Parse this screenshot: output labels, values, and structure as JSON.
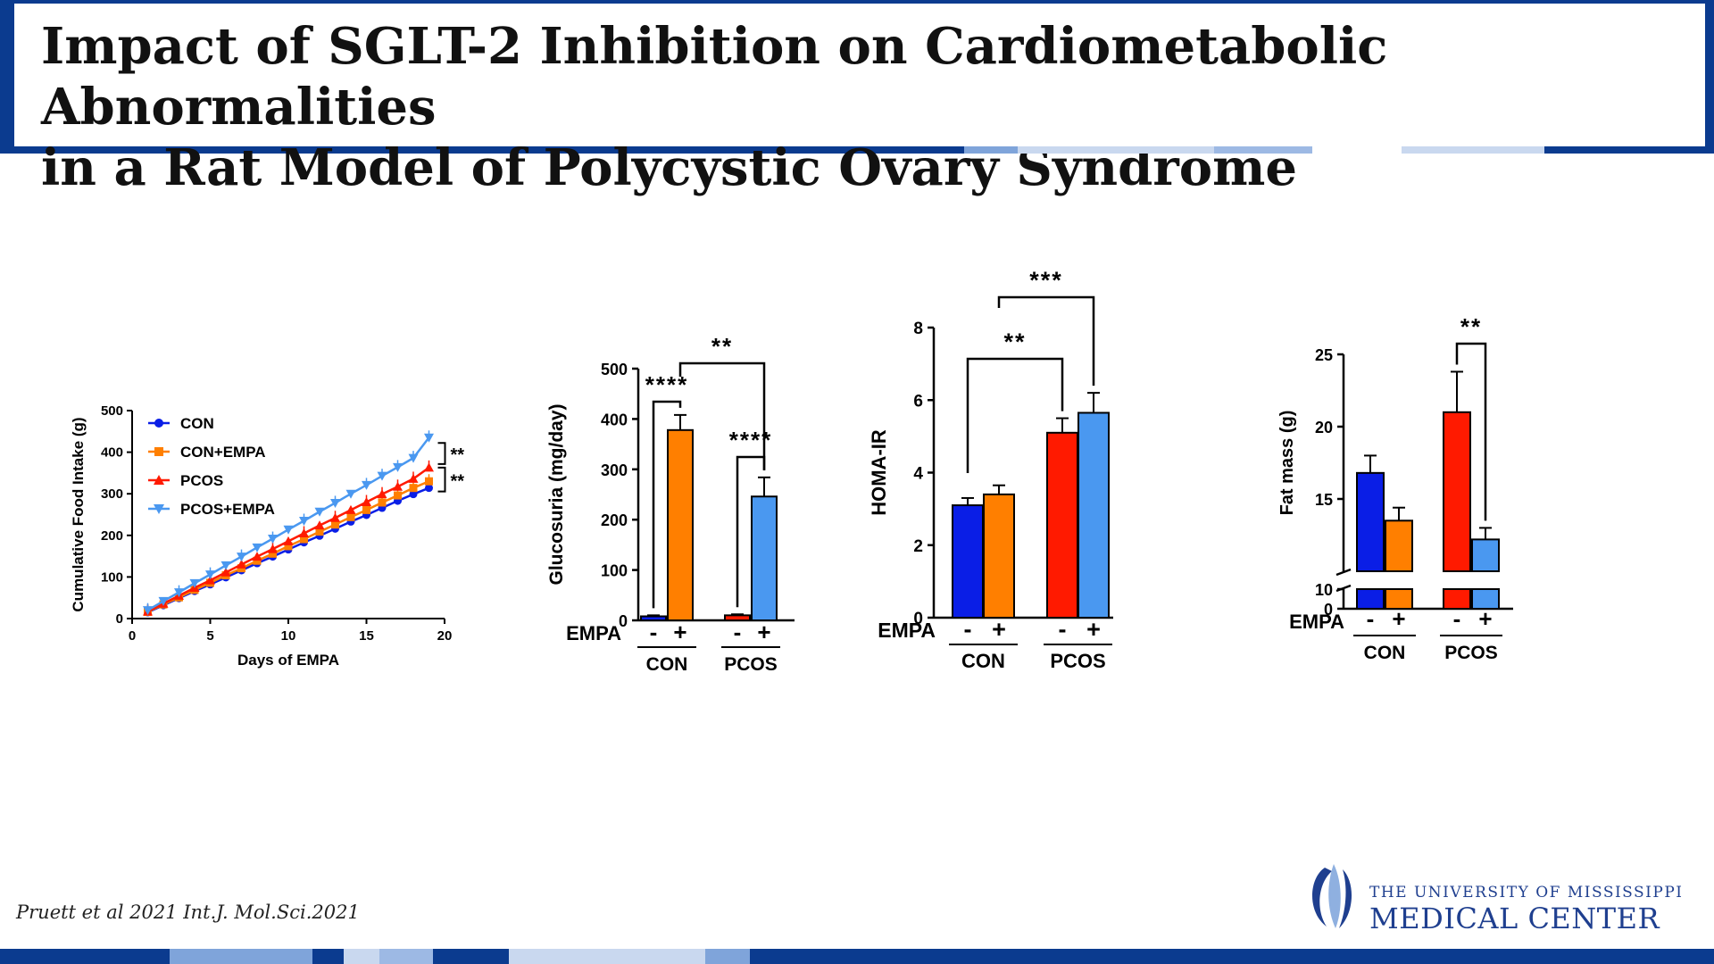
{
  "slide": {
    "title": "Impact of SGLT-2 Inhibition on Cardiometabolic Abnormalities\nin a Rat Model of Polycystic Ovary Syndrome",
    "citation": "Pruett et al 2021 Int.J. Mol.Sci.2021",
    "logo": {
      "line1": "THE UNIVERSITY OF MISSISSIPPI",
      "line2": "MEDICAL CENTER"
    },
    "colors": {
      "frame": "#0b3b8f",
      "con": "#0a1ee6",
      "con_empa": "#ff7f00",
      "pcos": "#ff1a00",
      "pcos_empa": "#4a98f0"
    },
    "empa_label": "EMPA",
    "minus": "-",
    "plus": "+"
  },
  "chart_data": [
    {
      "type": "line",
      "xlabel": "Days of EMPA",
      "ylabel": "Cumulative Food Intake (g)",
      "xlim": [
        0,
        20
      ],
      "ylim": [
        0,
        500
      ],
      "xticks": [
        0,
        5,
        10,
        15,
        20
      ],
      "yticks": [
        0,
        100,
        200,
        300,
        400,
        500
      ],
      "legend": "top-left",
      "x": [
        1,
        2,
        3,
        4,
        5,
        6,
        7,
        8,
        9,
        10,
        11,
        12,
        13,
        14,
        15,
        16,
        17,
        18,
        19
      ],
      "series": [
        {
          "name": "CON",
          "marker": "circle",
          "color": "#0a1ee6",
          "values": [
            15,
            32,
            49,
            66,
            82,
            99,
            116,
            133,
            149,
            166,
            183,
            199,
            216,
            233,
            249,
            266,
            283,
            299,
            314
          ]
        },
        {
          "name": "CON+EMPA",
          "marker": "square",
          "color": "#ff7f00",
          "values": [
            16,
            34,
            51,
            69,
            86,
            104,
            121,
            139,
            156,
            174,
            191,
            209,
            226,
            244,
            261,
            279,
            296,
            314,
            330
          ]
        },
        {
          "name": "PCOS",
          "marker": "triangle-up",
          "color": "#ff1a00",
          "values": [
            17,
            36,
            55,
            74,
            92,
            111,
            130,
            149,
            167,
            186,
            205,
            224,
            242,
            261,
            280,
            299,
            317,
            336,
            363
          ]
        },
        {
          "name": "PCOS+EMPA",
          "marker": "triangle-down",
          "color": "#4a98f0",
          "values": [
            20,
            42,
            63,
            85,
            106,
            128,
            149,
            171,
            192,
            214,
            235,
            257,
            278,
            300,
            321,
            343,
            364,
            386,
            435
          ]
        }
      ],
      "annotations": [
        "**",
        "**"
      ]
    },
    {
      "type": "bar",
      "ylabel": "Glucosuria (mg/day)",
      "ylim": [
        0,
        500
      ],
      "yticks": [
        0,
        100,
        200,
        300,
        400,
        500
      ],
      "groups": [
        "CON",
        "PCOS"
      ],
      "bars": [
        {
          "group": "CON",
          "empa": "-",
          "value": 8,
          "error": 2,
          "color": "#0a1ee6"
        },
        {
          "group": "CON",
          "empa": "+",
          "value": 378,
          "error": 30,
          "color": "#ff7f00"
        },
        {
          "group": "PCOS",
          "empa": "-",
          "value": 10,
          "error": 2,
          "color": "#ff1a00"
        },
        {
          "group": "PCOS",
          "empa": "+",
          "value": 246,
          "error": 38,
          "color": "#4a98f0"
        }
      ],
      "significance": [
        "****",
        "****",
        "**"
      ]
    },
    {
      "type": "bar",
      "ylabel": "HOMA-IR",
      "ylim": [
        0,
        8
      ],
      "yticks": [
        0,
        2,
        4,
        6,
        8
      ],
      "groups": [
        "CON",
        "PCOS"
      ],
      "bars": [
        {
          "group": "CON",
          "empa": "-",
          "value": 3.1,
          "error": 0.2,
          "color": "#0a1ee6"
        },
        {
          "group": "CON",
          "empa": "+",
          "value": 3.4,
          "error": 0.25,
          "color": "#ff7f00"
        },
        {
          "group": "PCOS",
          "empa": "-",
          "value": 5.1,
          "error": 0.4,
          "color": "#ff1a00"
        },
        {
          "group": "PCOS",
          "empa": "+",
          "value": 5.65,
          "error": 0.55,
          "color": "#4a98f0"
        }
      ],
      "significance": [
        "**",
        "***"
      ]
    },
    {
      "type": "bar",
      "ylabel": "Fat mass (g)",
      "ylim": [
        0,
        25
      ],
      "yticks": [
        0,
        10,
        15,
        20,
        25
      ],
      "axis_break": [
        0,
        10
      ],
      "groups": [
        "CON",
        "PCOS"
      ],
      "bars": [
        {
          "group": "CON",
          "empa": "-",
          "value": 16.8,
          "error": 1.2,
          "color": "#0a1ee6"
        },
        {
          "group": "CON",
          "empa": "+",
          "value": 13.5,
          "error": 0.9,
          "color": "#ff7f00"
        },
        {
          "group": "PCOS",
          "empa": "-",
          "value": 21.0,
          "error": 2.8,
          "color": "#ff1a00"
        },
        {
          "group": "PCOS",
          "empa": "+",
          "value": 12.2,
          "error": 0.8,
          "color": "#4a98f0"
        }
      ],
      "significance": [
        "**"
      ]
    }
  ]
}
